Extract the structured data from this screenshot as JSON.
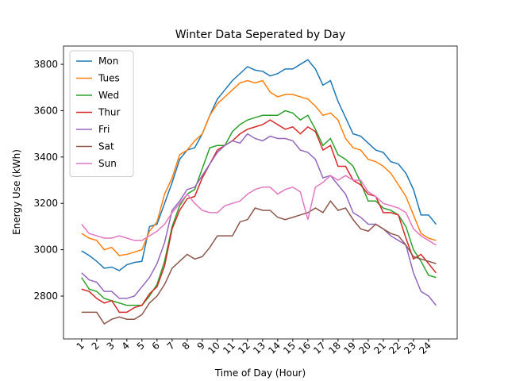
{
  "chart_data": {
    "type": "line",
    "title": "Winter Data Seperated by Day",
    "xlabel": "Time of Day (Hour)",
    "ylabel": "Energy Use (kWh)",
    "x": [
      1,
      1.5,
      2,
      2.5,
      3,
      3.5,
      4,
      4.5,
      5,
      5.5,
      6,
      6.5,
      7,
      7.5,
      8,
      8.5,
      9,
      9.5,
      10,
      10.5,
      11,
      11.5,
      12,
      12.5,
      13,
      13.5,
      14,
      14.5,
      15,
      15.5,
      16,
      16.5,
      17,
      17.5,
      18,
      18.5,
      19,
      19.5,
      20,
      20.5,
      21,
      21.5,
      22,
      22.5,
      23,
      23.5,
      24,
      24.5
    ],
    "xlim": [
      -0.2,
      25.9
    ],
    "xticks": [
      1,
      2,
      3,
      4,
      5,
      6,
      7,
      8,
      9,
      10,
      11,
      12,
      13,
      14,
      15,
      16,
      17,
      18,
      19,
      20,
      21,
      22,
      23,
      24
    ],
    "ylim": [
      2615,
      3879
    ],
    "yticks": [
      2800,
      3000,
      3200,
      3400,
      3600,
      3800
    ],
    "legend": "upper left",
    "grid": false,
    "series": [
      {
        "name": "Mon",
        "color": "#1f77b4",
        "values": [
          2995,
          2975,
          2950,
          2920,
          2925,
          2910,
          2935,
          2945,
          2950,
          3100,
          3110,
          3200,
          3290,
          3390,
          3430,
          3440,
          3500,
          3580,
          3650,
          3690,
          3730,
          3760,
          3790,
          3775,
          3770,
          3750,
          3760,
          3780,
          3780,
          3800,
          3820,
          3780,
          3710,
          3730,
          3640,
          3570,
          3500,
          3490,
          3460,
          3430,
          3420,
          3380,
          3370,
          3330,
          3260,
          3150,
          3150,
          3110
        ]
      },
      {
        "name": "Tues",
        "color": "#ff7f0e",
        "values": [
          3070,
          3050,
          3040,
          3000,
          3010,
          2975,
          2980,
          2990,
          3000,
          3080,
          3120,
          3240,
          3310,
          3410,
          3430,
          3470,
          3500,
          3580,
          3630,
          3660,
          3690,
          3720,
          3730,
          3720,
          3730,
          3680,
          3660,
          3670,
          3670,
          3660,
          3650,
          3620,
          3580,
          3590,
          3560,
          3480,
          3440,
          3430,
          3390,
          3380,
          3360,
          3330,
          3280,
          3230,
          3150,
          3070,
          3050,
          3040
        ]
      },
      {
        "name": "Wed",
        "color": "#2ca02c",
        "values": [
          2880,
          2830,
          2820,
          2790,
          2780,
          2770,
          2760,
          2760,
          2760,
          2800,
          2850,
          2950,
          3100,
          3190,
          3240,
          3260,
          3350,
          3440,
          3450,
          3450,
          3510,
          3540,
          3560,
          3570,
          3580,
          3580,
          3580,
          3600,
          3590,
          3560,
          3580,
          3520,
          3450,
          3480,
          3410,
          3390,
          3360,
          3290,
          3210,
          3210,
          3180,
          3170,
          3150,
          3100,
          3000,
          2950,
          2890,
          2880
        ]
      },
      {
        "name": "Thur",
        "color": "#d62728",
        "values": [
          2830,
          2820,
          2790,
          2770,
          2780,
          2730,
          2730,
          2750,
          2760,
          2810,
          2840,
          2930,
          3090,
          3170,
          3220,
          3230,
          3310,
          3370,
          3430,
          3450,
          3470,
          3500,
          3520,
          3530,
          3540,
          3560,
          3540,
          3520,
          3530,
          3500,
          3530,
          3510,
          3430,
          3450,
          3360,
          3360,
          3300,
          3280,
          3240,
          3230,
          3160,
          3160,
          3150,
          3050,
          2960,
          2980,
          2940,
          2900
        ]
      },
      {
        "name": "Fri",
        "color": "#9467bd",
        "values": [
          2900,
          2870,
          2860,
          2820,
          2820,
          2790,
          2790,
          2800,
          2840,
          2880,
          2940,
          3030,
          3170,
          3210,
          3260,
          3270,
          3320,
          3370,
          3420,
          3450,
          3470,
          3460,
          3500,
          3480,
          3470,
          3490,
          3480,
          3480,
          3470,
          3430,
          3420,
          3390,
          3310,
          3320,
          3280,
          3240,
          3160,
          3140,
          3110,
          3110,
          3090,
          3060,
          3040,
          3020,
          2900,
          2820,
          2800,
          2760
        ]
      },
      {
        "name": "Sat",
        "color": "#8c564b",
        "values": [
          2730,
          2730,
          2730,
          2680,
          2700,
          2710,
          2700,
          2700,
          2720,
          2770,
          2800,
          2850,
          2920,
          2950,
          2980,
          2960,
          2970,
          3010,
          3060,
          3060,
          3060,
          3120,
          3130,
          3180,
          3170,
          3170,
          3140,
          3130,
          3140,
          3150,
          3160,
          3180,
          3160,
          3210,
          3170,
          3180,
          3130,
          3090,
          3080,
          3110,
          3090,
          3070,
          3060,
          3020,
          2970,
          2960,
          2950,
          2940
        ]
      },
      {
        "name": "Sun",
        "color": "#e377c2",
        "values": [
          3110,
          3070,
          3060,
          3050,
          3050,
          3060,
          3050,
          3040,
          3040,
          3060,
          3080,
          3110,
          3160,
          3200,
          3240,
          3200,
          3170,
          3160,
          3160,
          3190,
          3200,
          3210,
          3240,
          3260,
          3270,
          3270,
          3240,
          3260,
          3270,
          3250,
          3130,
          3270,
          3290,
          3320,
          3300,
          3320,
          3300,
          3300,
          3250,
          3230,
          3200,
          3190,
          3180,
          3160,
          3090,
          3060,
          3040,
          3020
        ]
      }
    ]
  }
}
